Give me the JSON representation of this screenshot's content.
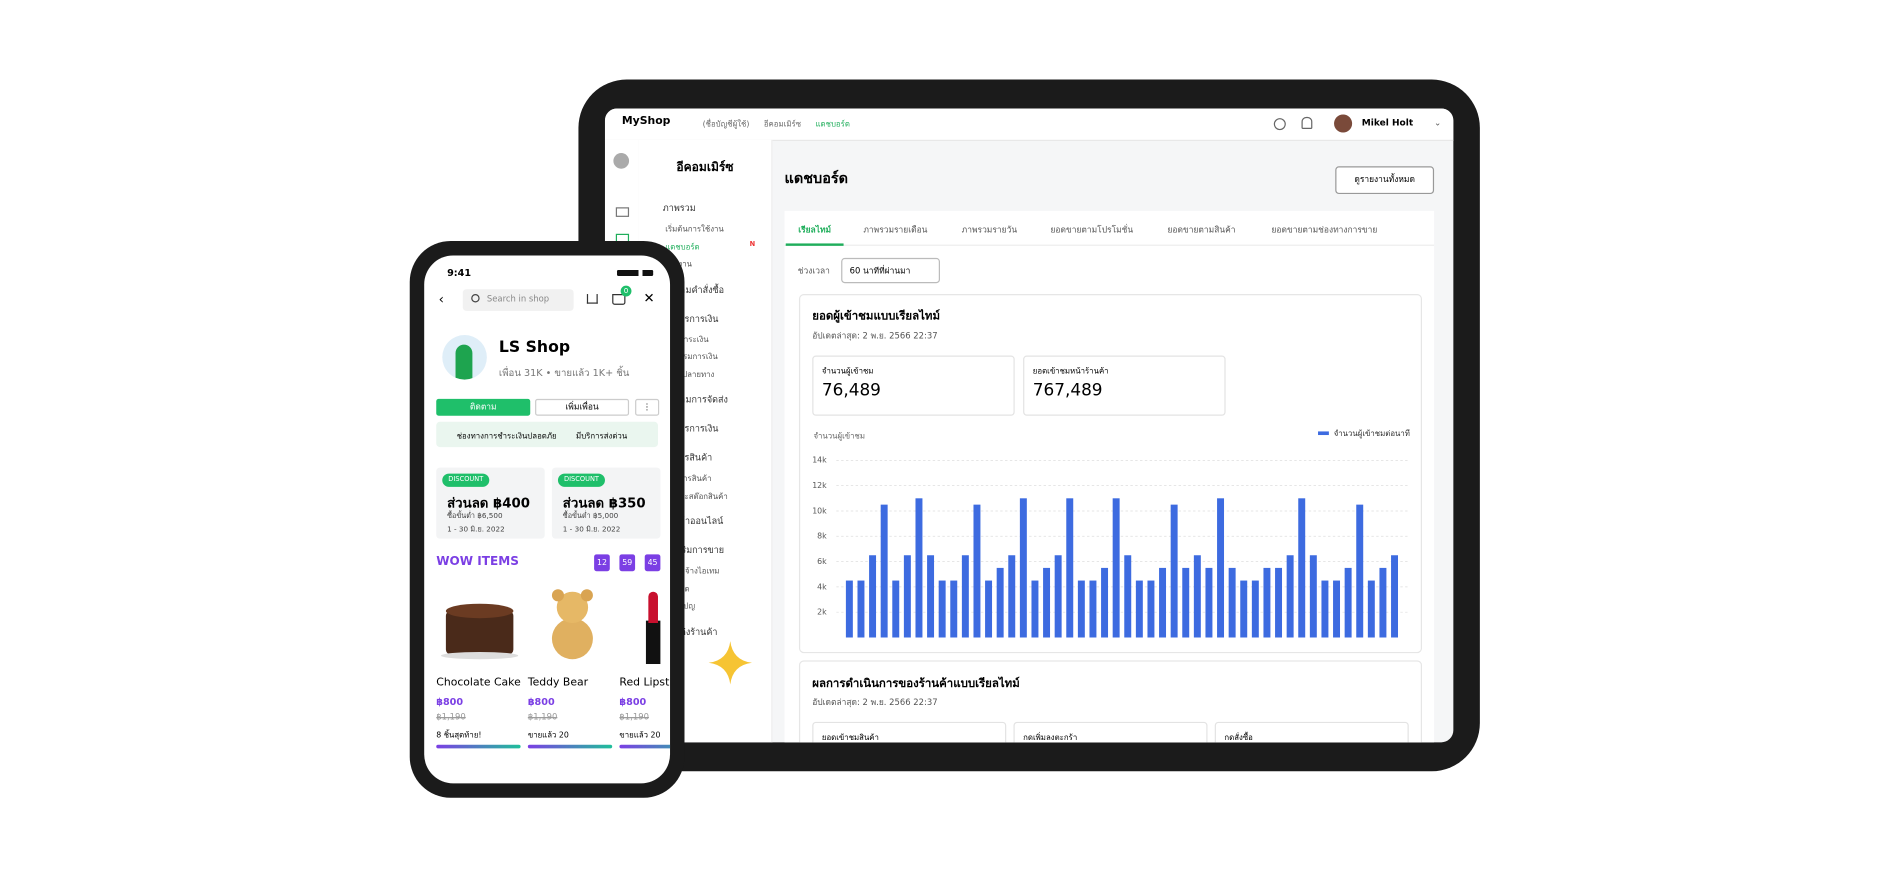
{
  "tablet": {
    "brand": "MyShop",
    "breadcrumb": [
      "(ชื่อบัญชีผู้ใช้)",
      "อีคอมเมิร์ซ",
      "แดชบอร์ด"
    ],
    "user": "Mikel Holt",
    "sidebar": {
      "title": "อีคอมเมิร์ซ",
      "new_badge": "N",
      "sections": [
        {
          "title": "ภาพรวม",
          "items": [
            "เริ่มต้นการใช้งาน",
            "แดชบอร์ด",
            "รายงาน"
          ]
        },
        {
          "title": "ติดตามคำสั่งซื้อ",
          "items": []
        },
        {
          "title": "จัดการการเงิน",
          "items": [
            "การชำระเงิน",
            "ธุรกรรมการเงิน",
            "บัญชีปลายทาง"
          ]
        },
        {
          "title": "ติดตามการจัดส่ง",
          "items": []
        },
        {
          "title": "จัดการการเงิน",
          "items": []
        },
        {
          "title": "จัดการสินค้า",
          "items": [
            "รายการสินค้า",
            "สถานะสต๊อกสินค้า"
          ]
        },
        {
          "title": "ร้านค้าออนไลน์",
          "items": []
        },
        {
          "title": "ส่งเสริมการขาย",
          "items": [
            "สินค้าจ้างไอเทม",
            "ส่วนลด",
            "แคมเปญ"
          ]
        },
        {
          "title": "ตกแต่งร้านค้า",
          "items": []
        }
      ]
    },
    "page_title": "แดชบอร์ด",
    "report_button": "ดูรายงานทั้งหมด",
    "tabs": [
      "เรียลไทม์",
      "ภาพรวมรายเดือน",
      "ภาพรวมรายวัน",
      "ยอดขายตามโปรโมชั่น",
      "ยอดขายตามสินค้า",
      "ยอดขายตามช่องทางการขาย"
    ],
    "period_label": "ช่วงเวลา",
    "period_value": "60 นาทีที่ผ่านมา",
    "visitors_card": {
      "title": "ยอดผู้เข้าชมแบบเรียลไทม์",
      "updated": "อัปเดตล่าสุด: 2 พ.ย. 2566 22:37",
      "stats": [
        {
          "label": "จำนวนผู้เข้าชม",
          "value": "76,489"
        },
        {
          "label": "ยอดเข้าชมหน้าร้านค้า",
          "value": "767,489"
        }
      ]
    },
    "chart_data": {
      "type": "bar",
      "ylabel": "จำนวนผู้เข้าชม",
      "ylim": [
        0,
        14000
      ],
      "yticks": [
        {
          "value": 2000,
          "label": "2k"
        },
        {
          "value": 4000,
          "label": "4k"
        },
        {
          "value": 6000,
          "label": "6k"
        },
        {
          "value": 8000,
          "label": "8k"
        },
        {
          "value": 10000,
          "label": "10k"
        },
        {
          "value": 12000,
          "label": "12k"
        },
        {
          "value": 14000,
          "label": "14k"
        }
      ],
      "grid": true,
      "legend": "top-right",
      "series": [
        {
          "name": "จำนวนผู้เข้าชมต่อนาที",
          "color": "#3d6be0",
          "values": [
            4500,
            4500,
            6500,
            10500,
            4500,
            6500,
            11000,
            6500,
            4500,
            4500,
            6500,
            10500,
            4500,
            5500,
            6500,
            11000,
            4500,
            5500,
            6500,
            11000,
            4500,
            4500,
            5500,
            11000,
            6500,
            4500,
            4500,
            5500,
            10500,
            5500,
            6500,
            5500,
            11000,
            5500,
            4500,
            4500,
            5500,
            5500,
            6500,
            11000,
            6500,
            4500,
            4500,
            5500,
            10500,
            4500,
            5500,
            6500
          ]
        }
      ]
    },
    "performance_card": {
      "title": "ผลการดำเนินการของร้านค้าแบบเรียลไทม์",
      "updated": "อัปเดตล่าสุด: 2 พ.ย. 2566 22:37",
      "stats": [
        "ยอดเข้าชมสินค้า",
        "กดเพิ่มลงตะกร้า",
        "กดสั่งซื้อ"
      ]
    }
  },
  "phone": {
    "time": "9:41",
    "search": "Search in shop",
    "cart_count": "0",
    "shop_name": "LS Shop",
    "shop_meta": "เพื่อน 31K • ขายแล้ว 1K+ ชิ้น",
    "follow": "ติดตาม",
    "add_friend": "เพิ่มเพื่อน",
    "banner": [
      "ช่องทางการชำระเงินปลอดภัย",
      "มีบริการส่งด่วน"
    ],
    "coupons": [
      {
        "badge": "DISCOUNT",
        "title": "ส่วนลด ฿400",
        "min": "ซื้อขั้นต่ำ ฿6,500",
        "date": "1 - 30 มิ.ย. 2022"
      },
      {
        "badge": "DISCOUNT",
        "title": "ส่วนลด ฿350",
        "min": "ซื้อขั้นต่ำ ฿5,000",
        "date": "1 - 30 มิ.ย. 2022"
      }
    ],
    "wow": "WOW ITEMS",
    "countdown": [
      "12",
      "59",
      "45"
    ],
    "products": [
      {
        "name": "Chocolate Cake",
        "price": "฿800",
        "old_price": "฿1,190",
        "note": "8 ชิ้นสุดท้าย!"
      },
      {
        "name": "Teddy Bear",
        "price": "฿800",
        "old_price": "฿1,190",
        "note": "ขายแล้ว 20"
      },
      {
        "name": "Red Lipstick",
        "price": "฿800",
        "old_price": "฿1,190",
        "note": "ขายแล้ว 20"
      }
    ]
  }
}
